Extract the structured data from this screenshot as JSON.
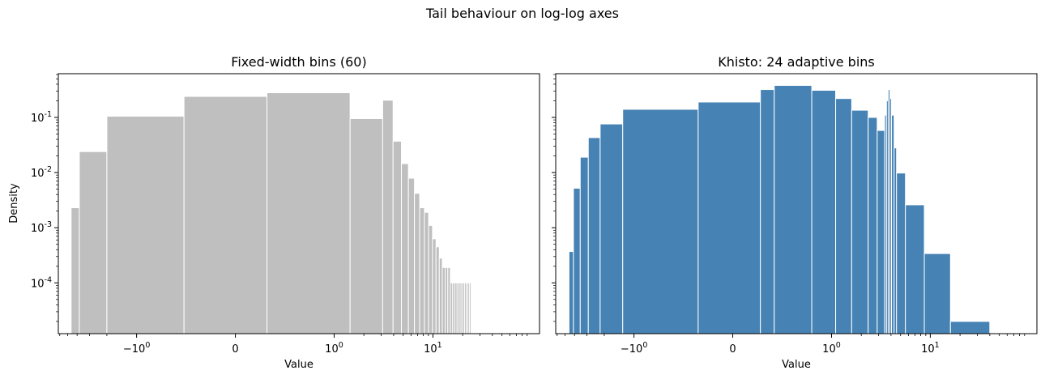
{
  "figure": {
    "title": "Tail behaviour on log-log axes"
  },
  "chart_data": [
    {
      "type": "bar",
      "title": "Fixed-width bins (60)",
      "xlabel": "Value",
      "ylabel": "Density",
      "xscale": "symlog",
      "yscale": "log",
      "xticks": [
        "−10^0",
        "0",
        "10^0",
        "10^1"
      ],
      "yticks": [
        "10^-4",
        "10^-3",
        "10^-2",
        "10^-1"
      ],
      "ylim": [
        1.2e-05,
        0.62
      ],
      "bar_color": "#bfbfbf",
      "bars": [
        {
          "x0": -4.6,
          "x1": -3.8,
          "y": 0.0023
        },
        {
          "x0": -3.8,
          "x1": -2.0,
          "y": 0.024
        },
        {
          "x0": -2.0,
          "x1": -0.52,
          "y": 0.105
        },
        {
          "x0": -0.52,
          "x1": 0.32,
          "y": 0.24
        },
        {
          "x0": 0.32,
          "x1": 1.45,
          "y": 0.28
        },
        {
          "x0": 1.45,
          "x1": 3.1,
          "y": 0.095
        },
        {
          "x0": 3.1,
          "x1": 3.95,
          "y": 0.205
        },
        {
          "x0": 3.95,
          "x1": 4.8,
          "y": 0.037
        },
        {
          "x0": 4.8,
          "x1": 5.65,
          "y": 0.0145
        },
        {
          "x0": 5.65,
          "x1": 6.5,
          "y": 0.0079
        },
        {
          "x0": 6.5,
          "x1": 7.35,
          "y": 0.0042
        },
        {
          "x0": 7.35,
          "x1": 8.2,
          "y": 0.0023
        },
        {
          "x0": 8.2,
          "x1": 9.05,
          "y": 0.0019
        },
        {
          "x0": 9.05,
          "x1": 9.9,
          "y": 0.0011
        },
        {
          "x0": 9.9,
          "x1": 10.75,
          "y": 0.00063
        },
        {
          "x0": 10.75,
          "x1": 11.6,
          "y": 0.00045
        },
        {
          "x0": 11.6,
          "x1": 12.45,
          "y": 0.00028
        },
        {
          "x0": 12.45,
          "x1": 13.3,
          "y": 0.00019
        },
        {
          "x0": 13.3,
          "x1": 14.15,
          "y": 0.00019
        },
        {
          "x0": 14.15,
          "x1": 15.0,
          "y": 0.00019
        },
        {
          "x0": 15.0,
          "x1": 15.85,
          "y": 0.0001
        },
        {
          "x0": 15.85,
          "x1": 16.7,
          "y": 0.0001
        },
        {
          "x0": 16.7,
          "x1": 17.55,
          "y": 0.0001
        },
        {
          "x0": 17.55,
          "x1": 18.4,
          "y": 0.0001
        },
        {
          "x0": 18.4,
          "x1": 19.25,
          "y": 0.0001
        },
        {
          "x0": 19.25,
          "x1": 20.1,
          "y": 0.0001
        },
        {
          "x0": 20.1,
          "x1": 20.95,
          "y": 0.0001
        },
        {
          "x0": 20.95,
          "x1": 21.8,
          "y": 0.0001
        },
        {
          "x0": 21.8,
          "x1": 22.65,
          "y": 0.0001
        },
        {
          "x0": 22.65,
          "x1": 23.5,
          "y": 0.0001
        },
        {
          "x0": 23.5,
          "x1": 24.35,
          "y": 0.0001
        }
      ]
    },
    {
      "type": "bar",
      "title": "Khisto: 24 adaptive bins",
      "xlabel": "Value",
      "ylabel": "",
      "xscale": "symlog",
      "yscale": "log",
      "xticks": [
        "−10^0",
        "0",
        "10^0",
        "10^1"
      ],
      "yticks": [],
      "ylim": [
        1.2e-05,
        0.62
      ],
      "bar_color": "#4682b4",
      "bars": [
        {
          "x0": -4.55,
          "x1": -4.1,
          "y": 0.00037
        },
        {
          "x0": -4.1,
          "x1": -3.5,
          "y": 0.0052
        },
        {
          "x0": -3.5,
          "x1": -2.9,
          "y": 0.019
        },
        {
          "x0": -2.9,
          "x1": -2.2,
          "y": 0.043
        },
        {
          "x0": -2.2,
          "x1": -1.3,
          "y": 0.076
        },
        {
          "x0": -1.3,
          "x1": -0.35,
          "y": 0.14
        },
        {
          "x0": -0.35,
          "x1": 0.28,
          "y": 0.19
        },
        {
          "x0": 0.28,
          "x1": 0.42,
          "y": 0.32
        },
        {
          "x0": 0.42,
          "x1": 0.8,
          "y": 0.38
        },
        {
          "x0": 0.8,
          "x1": 1.1,
          "y": 0.31
        },
        {
          "x0": 1.1,
          "x1": 1.6,
          "y": 0.22
        },
        {
          "x0": 1.6,
          "x1": 2.35,
          "y": 0.135
        },
        {
          "x0": 2.35,
          "x1": 2.9,
          "y": 0.1
        },
        {
          "x0": 2.9,
          "x1": 3.45,
          "y": 0.058
        },
        {
          "x0": 3.45,
          "x1": 3.6,
          "y": 0.11
        },
        {
          "x0": 3.6,
          "x1": 3.75,
          "y": 0.2
        },
        {
          "x0": 3.75,
          "x1": 3.9,
          "y": 0.32
        },
        {
          "x0": 3.9,
          "x1": 4.05,
          "y": 0.22
        },
        {
          "x0": 4.05,
          "x1": 4.3,
          "y": 0.11
        },
        {
          "x0": 4.3,
          "x1": 4.55,
          "y": 0.028
        },
        {
          "x0": 4.55,
          "x1": 5.6,
          "y": 0.0098
        },
        {
          "x0": 5.6,
          "x1": 8.7,
          "y": 0.0026
        },
        {
          "x0": 8.7,
          "x1": 16.0,
          "y": 0.00034
        },
        {
          "x0": 16.0,
          "x1": 40.0,
          "y": 2e-05
        }
      ]
    }
  ]
}
